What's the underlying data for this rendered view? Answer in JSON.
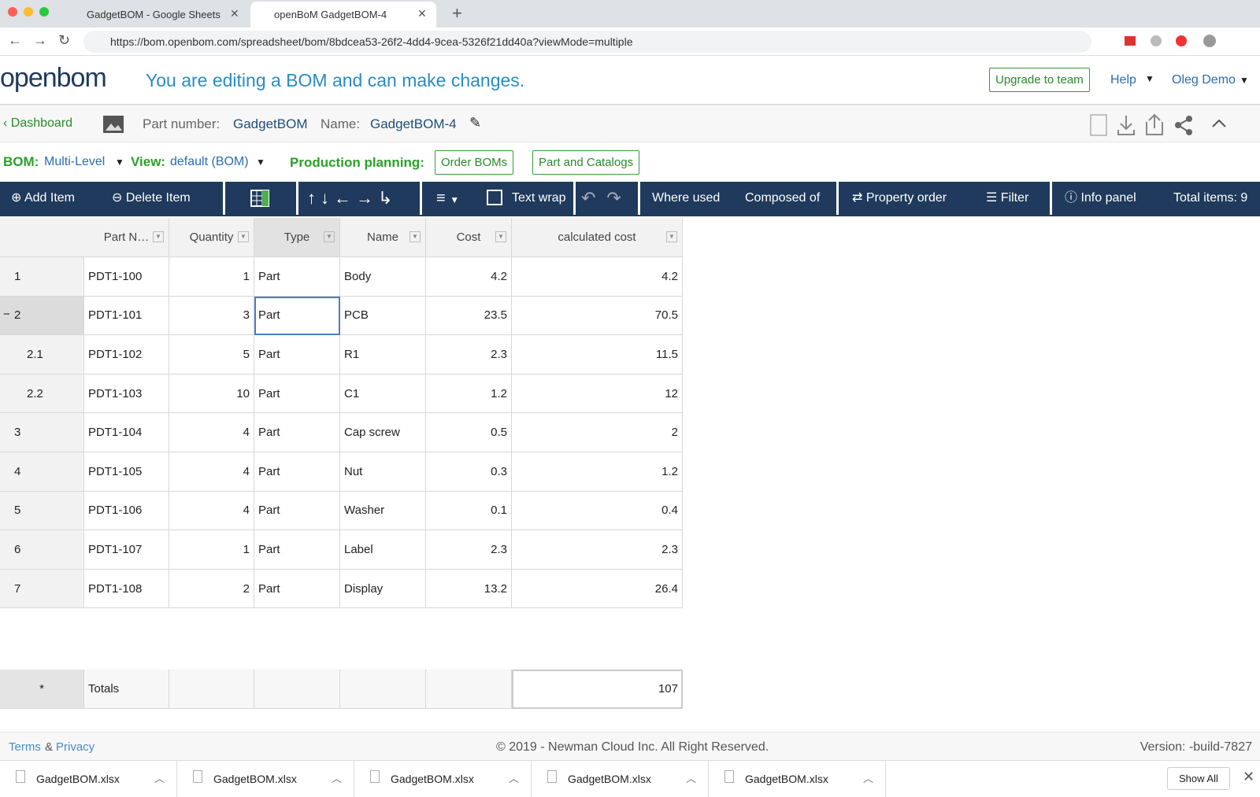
{
  "browser": {
    "tabs": [
      "GadgetBOM - Google Sheets",
      "openBoM GadgetBOM-4"
    ],
    "url": "https://bom.openbom.com/spreadsheet/bom/8bdcea53-26f2-4dd4-9cea-5326f21dd40a?viewMode=multiple"
  },
  "header": {
    "logo": "openbom",
    "message": "You are editing a BOM and can make changes.",
    "upgrade": "Upgrade to team",
    "help": "Help",
    "user": "Oleg Demo"
  },
  "breadcrumb": {
    "dashboard": "Dashboard",
    "part_number_label": "Part number:",
    "part_number": "GadgetBOM",
    "name_label": "Name:",
    "name": "GadgetBOM-4"
  },
  "options": {
    "bom_label": "BOM:",
    "bom_value": "Multi-Level",
    "view_label": "View:",
    "view_value": "default (BOM)",
    "planning_label": "Production planning:",
    "buttons": [
      "Order BOMs",
      "Part and Catalogs"
    ]
  },
  "toolbar": {
    "add": "Add Item",
    "delete": "Delete Item",
    "text_wrap": "Text wrap",
    "where_used": "Where used",
    "composed_of": "Composed of",
    "property_order": "Property order",
    "filter": "Filter",
    "info_panel": "Info panel",
    "total": "Total items: 9"
  },
  "table": {
    "columns": [
      "Part N…",
      "Quantity",
      "Type",
      "Name",
      "Cost",
      "calculated cost"
    ],
    "rows": [
      [
        "1",
        "PDT1-100",
        1,
        "Part",
        "Body",
        4.2,
        4.2
      ],
      [
        "2",
        "PDT1-101",
        3,
        "Part",
        "PCB",
        23.5,
        70.5
      ],
      [
        "2.1",
        "PDT1-102",
        5,
        "Part",
        "R1",
        2.3,
        11.5
      ],
      [
        "2.2",
        "PDT1-103",
        10,
        "Part",
        "C1",
        1.2,
        12
      ],
      [
        "3",
        "PDT1-104",
        4,
        "Part",
        "Cap screw",
        0.5,
        2
      ],
      [
        "4",
        "PDT1-105",
        4,
        "Part",
        "Nut",
        0.3,
        1.2
      ],
      [
        "5",
        "PDT1-106",
        4,
        "Part",
        "Washer",
        0.1,
        0.4
      ],
      [
        "6",
        "PDT1-107",
        1,
        "Part",
        "Label",
        2.3,
        2.3
      ],
      [
        "7",
        "PDT1-108",
        2,
        "Part",
        "Display",
        13.2,
        26.4
      ]
    ],
    "totals": {
      "marker": "*",
      "label": "Totals",
      "calculated_cost": 107
    }
  },
  "footer": {
    "terms": "Terms",
    "amp": "&",
    "privacy": "Privacy",
    "copyright": "© 2019 - Newman Cloud Inc. All Right Reserved.",
    "version": "Version: -build-7827"
  },
  "downloads": {
    "files": [
      "GadgetBOM.xlsx",
      "GadgetBOM.xlsx",
      "GadgetBOM.xlsx",
      "GadgetBOM.xlsx",
      "GadgetBOM.xlsx"
    ],
    "show_all": "Show All"
  }
}
